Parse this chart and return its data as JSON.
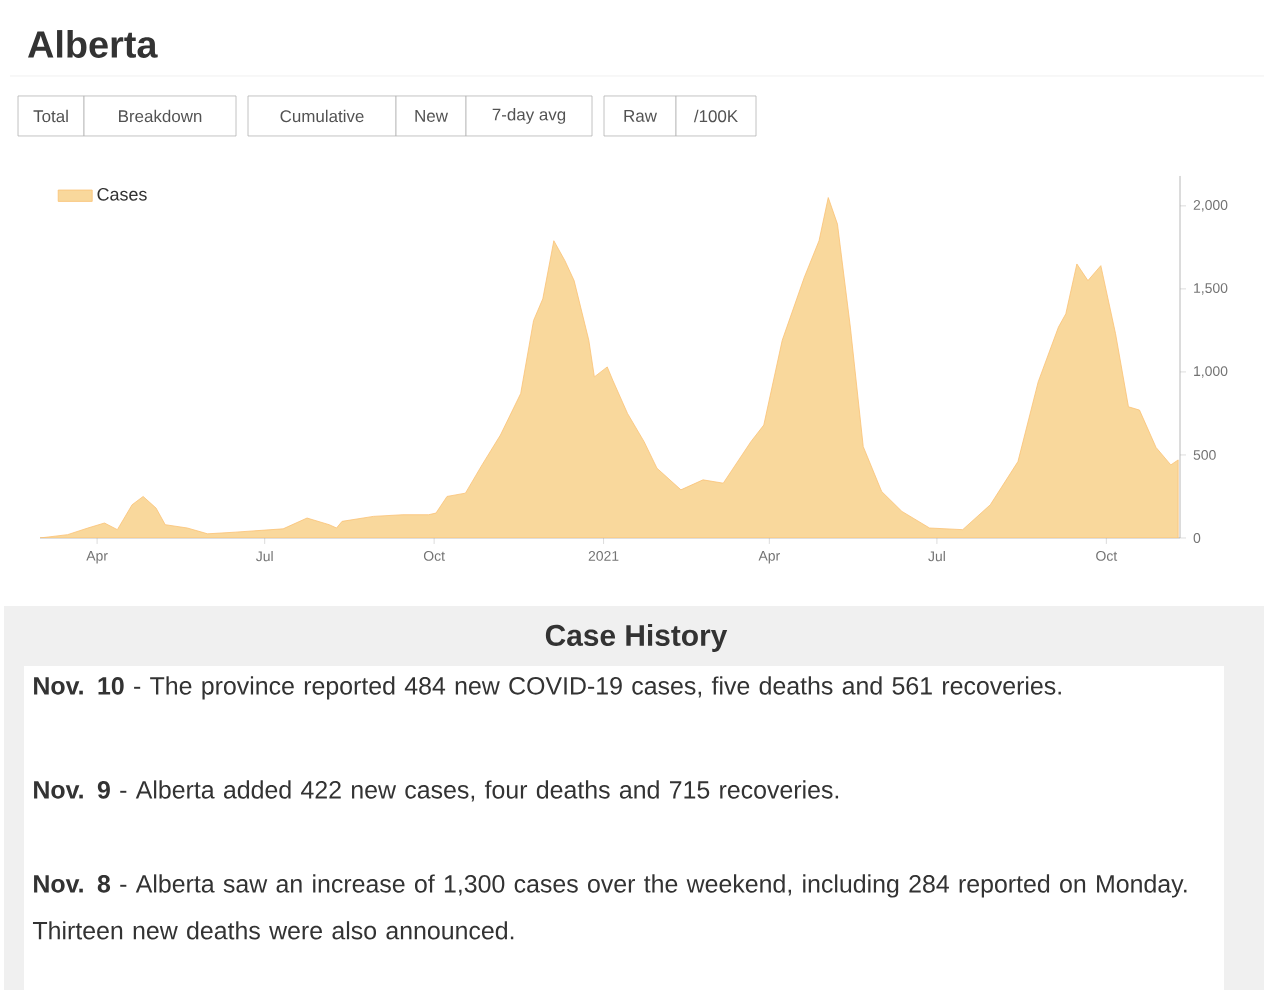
{
  "chart_data": {
    "type": "area",
    "title": "Alberta",
    "x": [
      "2020-03-01",
      "2020-03-16",
      "2020-03-27",
      "2020-04-05",
      "2020-04-12",
      "2020-04-20",
      "2020-04-26",
      "2020-05-03",
      "2020-05-08",
      "2020-05-20",
      "2020-05-31",
      "2020-06-15",
      "2020-07-11",
      "2020-07-24",
      "2020-08-05",
      "2020-08-09",
      "2020-08-12",
      "2020-08-29",
      "2020-09-14",
      "2020-09-28",
      "2020-10-02",
      "2020-10-08",
      "2020-10-18",
      "2020-10-27",
      "2020-11-06",
      "2020-11-17",
      "2020-11-24",
      "2020-11-29",
      "2020-12-05",
      "2020-12-11",
      "2020-12-16",
      "2020-12-24",
      "2020-12-27",
      "2021-01-03",
      "2021-01-06",
      "2021-01-14",
      "2021-01-23",
      "2021-01-30",
      "2021-02-12",
      "2021-02-24",
      "2021-03-07",
      "2021-03-22",
      "2021-03-29",
      "2021-04-08",
      "2021-04-20",
      "2021-04-28",
      "2021-05-03",
      "2021-05-08",
      "2021-05-15",
      "2021-05-22",
      "2021-06-01",
      "2021-06-12",
      "2021-06-27",
      "2021-07-15",
      "2021-07-30",
      "2021-08-14",
      "2021-08-25",
      "2021-09-05",
      "2021-09-09",
      "2021-09-15",
      "2021-09-21",
      "2021-09-28",
      "2021-10-06",
      "2021-10-13",
      "2021-10-19",
      "2021-10-28",
      "2021-11-05",
      "2021-11-09"
    ],
    "series": [
      {
        "name": "Cases",
        "color": "#f9d89c",
        "values": [
          0,
          20,
          60,
          90,
          50,
          200,
          250,
          180,
          80,
          60,
          25,
          35,
          55,
          120,
          80,
          60,
          100,
          130,
          140,
          140,
          150,
          250,
          270,
          440,
          620,
          870,
          1310,
          1440,
          1790,
          1670,
          1550,
          1190,
          970,
          1030,
          950,
          750,
          580,
          420,
          290,
          350,
          330,
          580,
          680,
          1190,
          1570,
          1790,
          2050,
          1890,
          1270,
          550,
          280,
          160,
          60,
          50,
          200,
          460,
          940,
          1270,
          1350,
          1650,
          1550,
          1640,
          1230,
          790,
          770,
          545,
          440,
          470
        ]
      }
    ],
    "xlim": [
      "2020-03-01",
      "2021-11-10"
    ],
    "xticks": [
      {
        "value": "2020-04-01",
        "label": "Apr"
      },
      {
        "value": "2020-07-01",
        "label": "Jul"
      },
      {
        "value": "2020-10-01",
        "label": "Oct"
      },
      {
        "value": "2021-01-01",
        "label": "2021"
      },
      {
        "value": "2021-04-01",
        "label": "Apr"
      },
      {
        "value": "2021-07-01",
        "label": "Jul"
      },
      {
        "value": "2021-10-01",
        "label": "Oct"
      }
    ],
    "ylim": [
      0,
      2180
    ],
    "yticks": [
      0,
      500,
      {
        "value": 1000,
        "label": "1,000"
      },
      {
        "value": 1500,
        "label": "1,500"
      },
      {
        "value": 2000,
        "label": "2,000"
      }
    ],
    "legend": "top left",
    "annotations": [
      "Total",
      "Breakdown",
      "Cumulative",
      "New",
      "7-day avg",
      "Raw",
      "/100K",
      "Case History",
      "**Nov. 10** - The province reported 484 new COVID-19 cases, five deaths and 561 recoveries.",
      "**Nov. 9** - Alberta added 422 new cases, four deaths and 715 recoveries.",
      "**Nov. 8** - Alberta saw an increase of 1,300 cases over the weekend, including 284 reported on Monday. Thirteen new deaths were also announced."
    ]
  }
}
